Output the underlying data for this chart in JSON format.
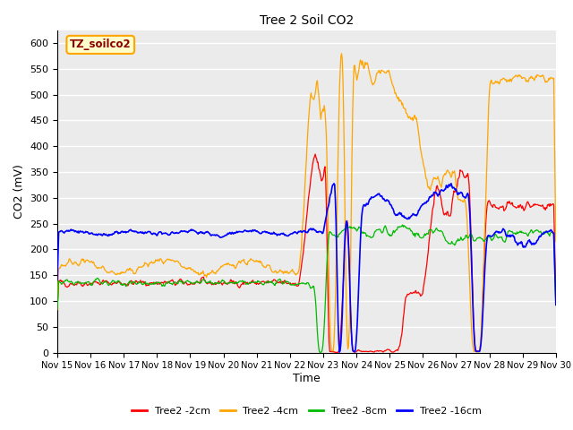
{
  "title": "Tree 2 Soil CO2",
  "xlabel": "Time",
  "ylabel": "CO2 (mV)",
  "ylim": [
    0,
    625
  ],
  "yticks": [
    0,
    50,
    100,
    150,
    200,
    250,
    300,
    350,
    400,
    450,
    500,
    550,
    600
  ],
  "xtick_labels": [
    "Nov 15",
    "Nov 16",
    "Nov 17",
    "Nov 18",
    "Nov 19",
    "Nov 20",
    "Nov 21",
    "Nov 22",
    "Nov 23",
    "Nov 24",
    "Nov 25",
    "Nov 26",
    "Nov 27",
    "Nov 28",
    "Nov 29",
    "Nov 30"
  ],
  "colors": {
    "red": "#FF0000",
    "orange": "#FFA500",
    "green": "#00BB00",
    "blue": "#0000FF"
  },
  "legend_labels": [
    "Tree2 -2cm",
    "Tree2 -4cm",
    "Tree2 -8cm",
    "Tree2 -16cm"
  ],
  "annotation_box": "TZ_soilco2",
  "plot_bg": "#EBEBEB",
  "grid_color": "#FFFFFF"
}
